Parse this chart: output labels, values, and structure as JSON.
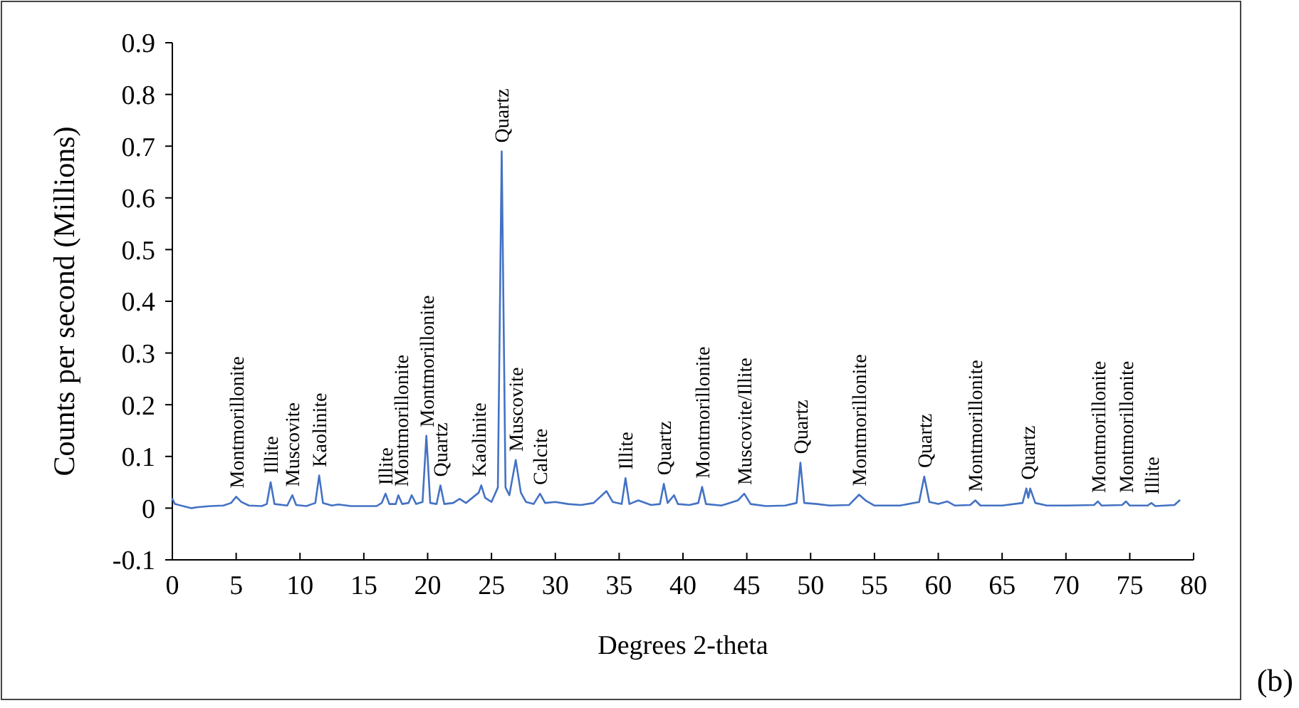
{
  "chart_data": {
    "type": "line",
    "xlabel": "Degrees 2-theta",
    "ylabel": "Counts per second (Millions)",
    "xlim": [
      0,
      80
    ],
    "xticks": [
      0,
      5,
      10,
      15,
      20,
      25,
      30,
      35,
      40,
      45,
      50,
      55,
      60,
      65,
      70,
      75,
      80
    ],
    "ylim": [
      -0.1,
      0.9
    ],
    "yticks": [
      -0.1,
      0,
      0.1,
      0.2,
      0.3,
      0.4,
      0.5,
      0.6,
      0.7,
      0.8,
      0.9
    ],
    "grid": false,
    "marker": "none",
    "line_style": "solid",
    "series": [
      {
        "color": "#4472c4",
        "x": [
          0,
          0.2,
          1,
          1.5,
          2,
          3,
          4,
          4.6,
          5.0,
          5.4,
          6,
          7,
          7.4,
          7.7,
          8.0,
          9,
          9.4,
          9.7,
          10.5,
          11.2,
          11.5,
          11.8,
          12.5,
          13,
          14,
          16,
          16.4,
          16.7,
          17.0,
          17.5,
          17.7,
          18.0,
          18.5,
          18.75,
          19.1,
          19.6,
          19.9,
          20.2,
          20.7,
          21.0,
          21.3,
          22,
          22.5,
          23,
          23.5,
          24.0,
          24.2,
          24.5,
          25.0,
          25.5,
          25.8,
          26.1,
          26.4,
          26.9,
          27.3,
          27.7,
          28.3,
          28.8,
          29.2,
          30,
          31,
          32,
          33,
          34.0,
          34.5,
          35.2,
          35.5,
          35.8,
          36.5,
          37.5,
          38.2,
          38.5,
          38.8,
          39.3,
          39.6,
          40.5,
          41.2,
          41.5,
          41.8,
          43,
          44.3,
          44.8,
          45.3,
          46.5,
          48,
          48.9,
          49.2,
          49.5,
          50.5,
          51.5,
          53,
          53.8,
          54.3,
          55,
          57,
          58.5,
          58.9,
          59.3,
          60,
          60.7,
          61.3,
          62.5,
          62.9,
          63.3,
          65,
          66.6,
          66.9,
          67.05,
          67.2,
          67.6,
          68.5,
          70,
          72.2,
          72.5,
          72.8,
          74.4,
          74.7,
          75,
          76.4,
          76.7,
          77,
          78.5,
          78.9
        ],
        "values": [
          0.018,
          0.008,
          0.003,
          0,
          0.002,
          0.004,
          0.005,
          0.01,
          0.022,
          0.012,
          0.005,
          0.004,
          0.008,
          0.05,
          0.008,
          0.005,
          0.025,
          0.006,
          0.004,
          0.01,
          0.063,
          0.01,
          0.005,
          0.007,
          0.004,
          0.004,
          0.01,
          0.028,
          0.008,
          0.008,
          0.025,
          0.008,
          0.01,
          0.025,
          0.008,
          0.012,
          0.14,
          0.01,
          0.008,
          0.044,
          0.008,
          0.01,
          0.018,
          0.01,
          0.02,
          0.03,
          0.044,
          0.02,
          0.012,
          0.04,
          0.69,
          0.04,
          0.025,
          0.093,
          0.03,
          0.012,
          0.008,
          0.028,
          0.01,
          0.012,
          0.008,
          0.006,
          0.01,
          0.033,
          0.012,
          0.008,
          0.058,
          0.008,
          0.015,
          0.006,
          0.008,
          0.047,
          0.01,
          0.025,
          0.008,
          0.006,
          0.01,
          0.041,
          0.008,
          0.005,
          0.015,
          0.028,
          0.008,
          0.004,
          0.005,
          0.01,
          0.088,
          0.01,
          0.008,
          0.005,
          0.006,
          0.026,
          0.015,
          0.005,
          0.005,
          0.012,
          0.061,
          0.012,
          0.008,
          0.013,
          0.005,
          0.006,
          0.015,
          0.005,
          0.005,
          0.01,
          0.038,
          0.02,
          0.038,
          0.01,
          0.005,
          0.005,
          0.006,
          0.013,
          0.005,
          0.006,
          0.013,
          0.005,
          0.005,
          0.01,
          0.004,
          0.006,
          0.015
        ]
      }
    ],
    "annotations": [
      {
        "text": "Montmorillonite",
        "x": 5.0,
        "y": 0.022
      },
      {
        "text": "Illite",
        "x": 7.7,
        "y": 0.05
      },
      {
        "text": "Muscovite",
        "x": 9.4,
        "y": 0.025
      },
      {
        "text": "Kaolinite",
        "x": 11.5,
        "y": 0.063
      },
      {
        "text": "Illite",
        "x": 16.7,
        "y": 0.028
      },
      {
        "text": "Montmorillonite",
        "x": 17.9,
        "y": 0.025
      },
      {
        "text": "Montmorillonite",
        "x": 19.9,
        "y": 0.14
      },
      {
        "text": "Quartz",
        "x": 21.0,
        "y": 0.044
      },
      {
        "text": "Kaolinite",
        "x": 24.0,
        "y": 0.044
      },
      {
        "text": "Quartz",
        "x": 25.8,
        "y": 0.69
      },
      {
        "text": "Muscovite",
        "x": 26.9,
        "y": 0.093
      },
      {
        "text": "Calcite",
        "x": 28.8,
        "y": 0.028
      },
      {
        "text": "Illite",
        "x": 35.5,
        "y": 0.058
      },
      {
        "text": "Quartz",
        "x": 38.5,
        "y": 0.047
      },
      {
        "text": "Montmorillonite",
        "x": 41.5,
        "y": 0.041
      },
      {
        "text": "Muscovite/Illite",
        "x": 44.8,
        "y": 0.028
      },
      {
        "text": "Quartz",
        "x": 49.2,
        "y": 0.088
      },
      {
        "text": "Montmorillonite",
        "x": 53.8,
        "y": 0.026
      },
      {
        "text": "Quartz",
        "x": 58.9,
        "y": 0.061
      },
      {
        "text": "Montmorillonite",
        "x": 62.9,
        "y": 0.015
      },
      {
        "text": "Quartz",
        "x": 67.0,
        "y": 0.038
      },
      {
        "text": "Montmorillonite",
        "x": 72.5,
        "y": 0.013
      },
      {
        "text": "Montmorillonite",
        "x": 74.7,
        "y": 0.013
      },
      {
        "text": "Illite",
        "x": 76.7,
        "y": 0.01
      },
      "(b)"
    ]
  }
}
